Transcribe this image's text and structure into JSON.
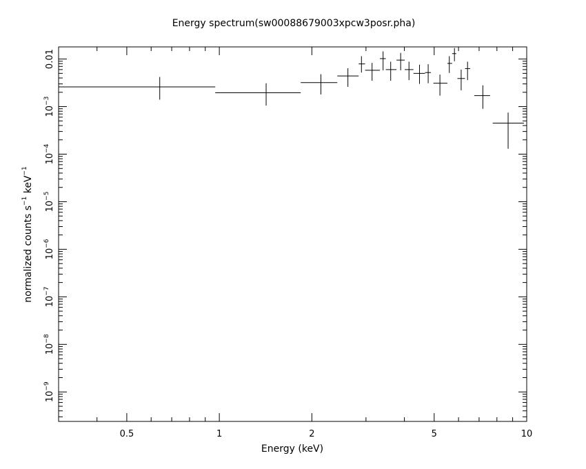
{
  "chart_data": {
    "type": "scatter",
    "title": "Energy spectrum(sw00088679003xpcw3posr.pha)",
    "xlabel": "Energy (keV)",
    "ylabel": {
      "text": "normalized counts s",
      "exp1": "−1",
      "unit": " keV",
      "exp2": "−1"
    },
    "x_scale": "log",
    "y_scale": "log",
    "xlim": [
      0.3,
      10.0
    ],
    "ylim": [
      2.4e-10,
      0.018
    ],
    "x_ticks": [
      {
        "value": 0.5,
        "label": "0.5"
      },
      {
        "value": 1,
        "label": "1"
      },
      {
        "value": 2,
        "label": "2"
      },
      {
        "value": 5,
        "label": "5"
      },
      {
        "value": 10,
        "label": "10"
      }
    ],
    "y_ticks": [
      {
        "value": 0.01,
        "mant": "0.01",
        "exp": ""
      },
      {
        "value": 0.001,
        "mant": "10",
        "exp": "−3"
      },
      {
        "value": 0.0001,
        "mant": "10",
        "exp": "−4"
      },
      {
        "value": 1e-05,
        "mant": "10",
        "exp": "−5"
      },
      {
        "value": 1e-06,
        "mant": "10",
        "exp": "−6"
      },
      {
        "value": 1e-07,
        "mant": "10",
        "exp": "−7"
      },
      {
        "value": 1e-08,
        "mant": "10",
        "exp": "−8"
      },
      {
        "value": 1e-09,
        "mant": "10",
        "exp": "−9"
      }
    ],
    "grid": false,
    "marker": "crosses with x-bin width and y error bars",
    "points": [
      {
        "x": 0.64,
        "xlo": 0.3,
        "xhi": 0.97,
        "y": 0.0026,
        "ylo": 0.0014,
        "yhi": 0.0042
      },
      {
        "x": 1.42,
        "xlo": 0.97,
        "xhi": 1.84,
        "y": 0.00195,
        "ylo": 0.00105,
        "yhi": 0.0031
      },
      {
        "x": 2.14,
        "xlo": 1.84,
        "xhi": 2.42,
        "y": 0.0032,
        "ylo": 0.0018,
        "yhi": 0.0048
      },
      {
        "x": 2.62,
        "xlo": 2.42,
        "xhi": 2.84,
        "y": 0.0044,
        "ylo": 0.0026,
        "yhi": 0.0064
      },
      {
        "x": 2.9,
        "xlo": 2.84,
        "xhi": 2.98,
        "y": 0.0079,
        "ylo": 0.0052,
        "yhi": 0.0115
      },
      {
        "x": 3.14,
        "xlo": 2.98,
        "xhi": 3.33,
        "y": 0.0058,
        "ylo": 0.0035,
        "yhi": 0.0083
      },
      {
        "x": 3.41,
        "xlo": 3.33,
        "xhi": 3.48,
        "y": 0.0102,
        "ylo": 0.0058,
        "yhi": 0.0145
      },
      {
        "x": 3.61,
        "xlo": 3.48,
        "xhi": 3.77,
        "y": 0.006,
        "ylo": 0.0035,
        "yhi": 0.0088
      },
      {
        "x": 3.89,
        "xlo": 3.77,
        "xhi": 4.01,
        "y": 0.0095,
        "ylo": 0.0058,
        "yhi": 0.0135
      },
      {
        "x": 4.14,
        "xlo": 4.01,
        "xhi": 4.28,
        "y": 0.006,
        "ylo": 0.0036,
        "yhi": 0.0088
      },
      {
        "x": 4.48,
        "xlo": 4.28,
        "xhi": 4.67,
        "y": 0.005,
        "ylo": 0.003,
        "yhi": 0.0076
      },
      {
        "x": 4.78,
        "xlo": 4.67,
        "xhi": 4.88,
        "y": 0.0052,
        "ylo": 0.0031,
        "yhi": 0.0078
      },
      {
        "x": 5.22,
        "xlo": 4.97,
        "xhi": 5.52,
        "y": 0.0031,
        "ylo": 0.0017,
        "yhi": 0.0047
      },
      {
        "x": 5.6,
        "xlo": 5.52,
        "xhi": 5.72,
        "y": 0.0081,
        "ylo": 0.0051,
        "yhi": 0.0115
      },
      {
        "x": 5.82,
        "xlo": 5.72,
        "xhi": 5.9,
        "y": 0.013,
        "ylo": 0.009,
        "yhi": 0.017
      },
      {
        "x": 6.12,
        "xlo": 5.95,
        "xhi": 6.3,
        "y": 0.0039,
        "ylo": 0.0022,
        "yhi": 0.006
      },
      {
        "x": 6.42,
        "xlo": 6.3,
        "xhi": 6.55,
        "y": 0.0063,
        "ylo": 0.0036,
        "yhi": 0.0088
      },
      {
        "x": 7.2,
        "xlo": 6.75,
        "xhi": 7.6,
        "y": 0.0017,
        "ylo": 0.0009,
        "yhi": 0.0028
      },
      {
        "x": 8.7,
        "xlo": 7.75,
        "xhi": 9.8,
        "y": 0.00045,
        "ylo": 0.00013,
        "yhi": 0.00075
      }
    ]
  }
}
